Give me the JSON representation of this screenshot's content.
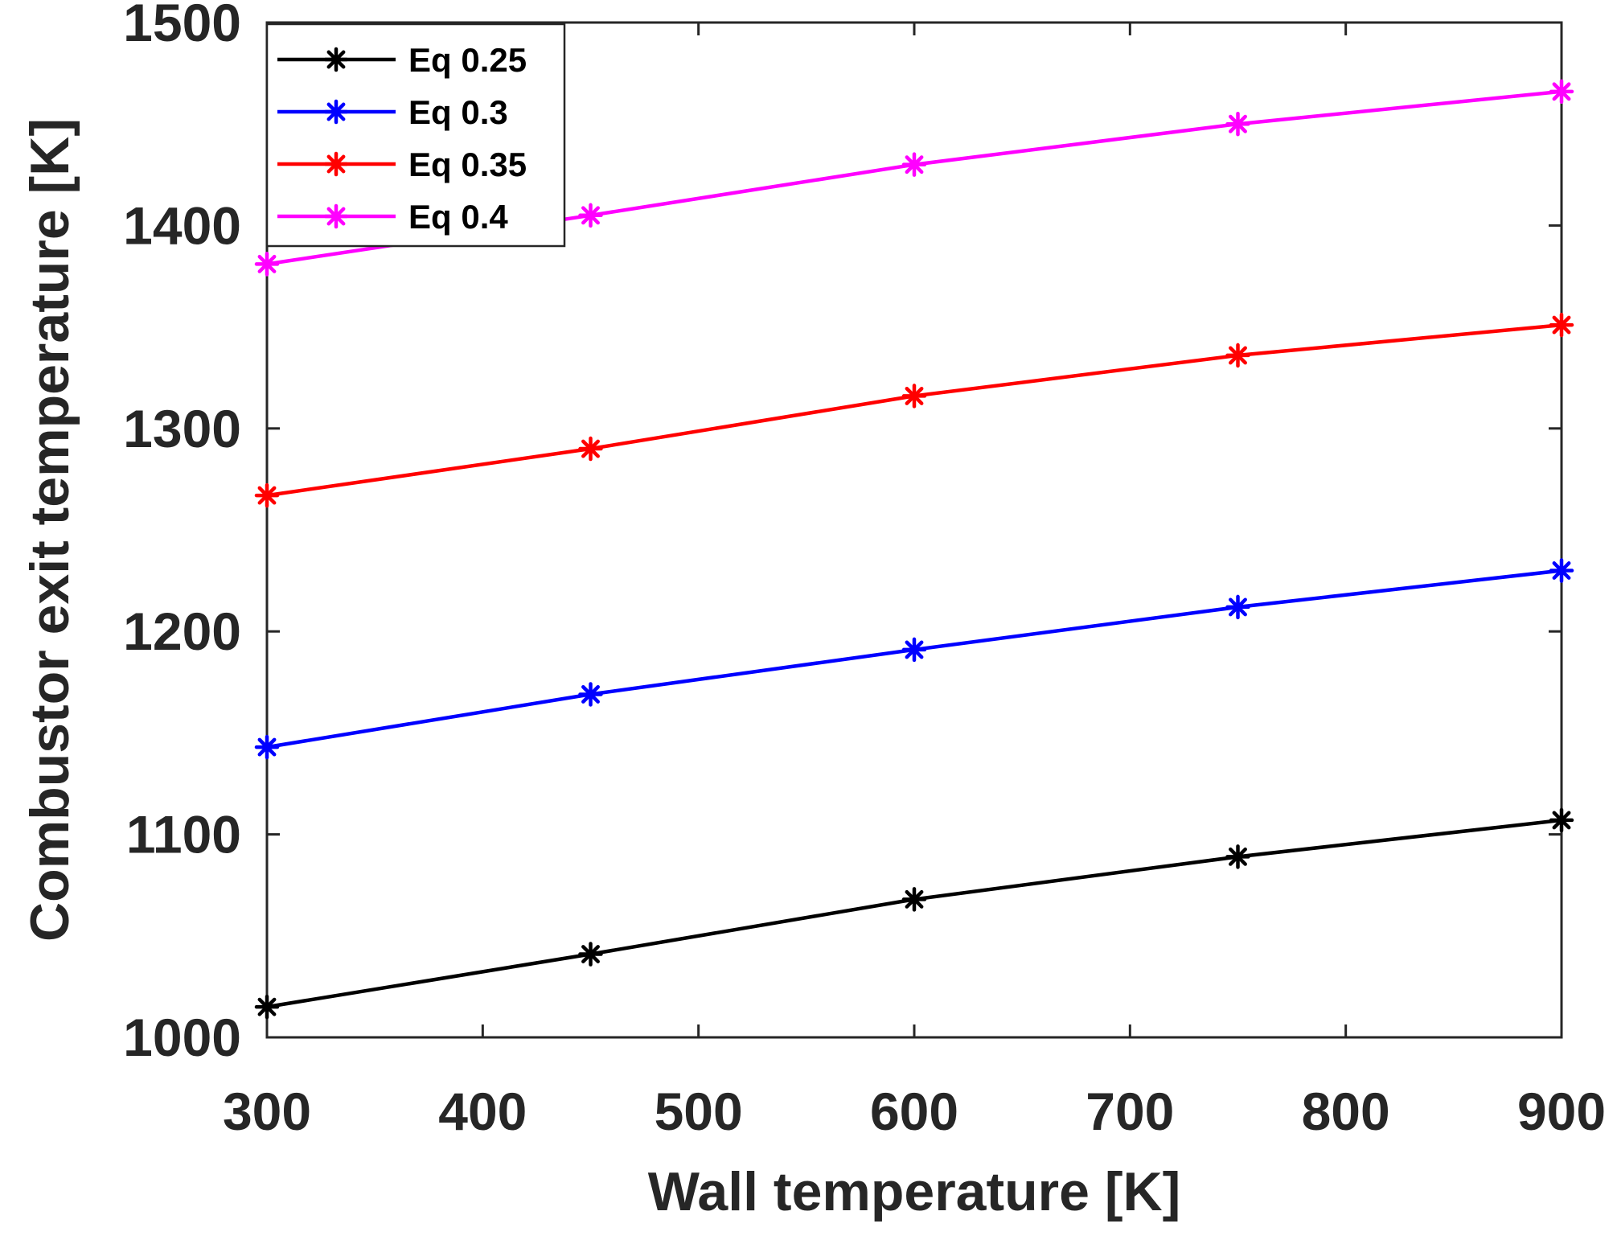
{
  "chart_data": {
    "type": "line",
    "title": "",
    "xlabel": "Wall temperature [K]",
    "ylabel": "Combustor exit temperature [K]",
    "xlim": [
      300,
      900
    ],
    "ylim": [
      1000,
      1500
    ],
    "xticks": [
      300,
      400,
      500,
      600,
      700,
      800,
      900
    ],
    "yticks": [
      1000,
      1100,
      1200,
      1300,
      1400,
      1500
    ],
    "grid": false,
    "legend_location": "top-left",
    "marker": "asterisk",
    "x": [
      300,
      450,
      600,
      750,
      900
    ],
    "series": [
      {
        "name": "Eq 0.25",
        "color": "#000000",
        "values": [
          1015,
          1041,
          1068,
          1089,
          1107
        ]
      },
      {
        "name": "Eq 0.3",
        "color": "#0000ff",
        "values": [
          1143,
          1169,
          1191,
          1212,
          1230
        ]
      },
      {
        "name": "Eq 0.35",
        "color": "#ff0000",
        "values": [
          1267,
          1290,
          1316,
          1336,
          1351
        ]
      },
      {
        "name": "Eq 0.4",
        "color": "#ff00ff",
        "values": [
          1381,
          1405,
          1430,
          1450,
          1466
        ]
      }
    ]
  }
}
